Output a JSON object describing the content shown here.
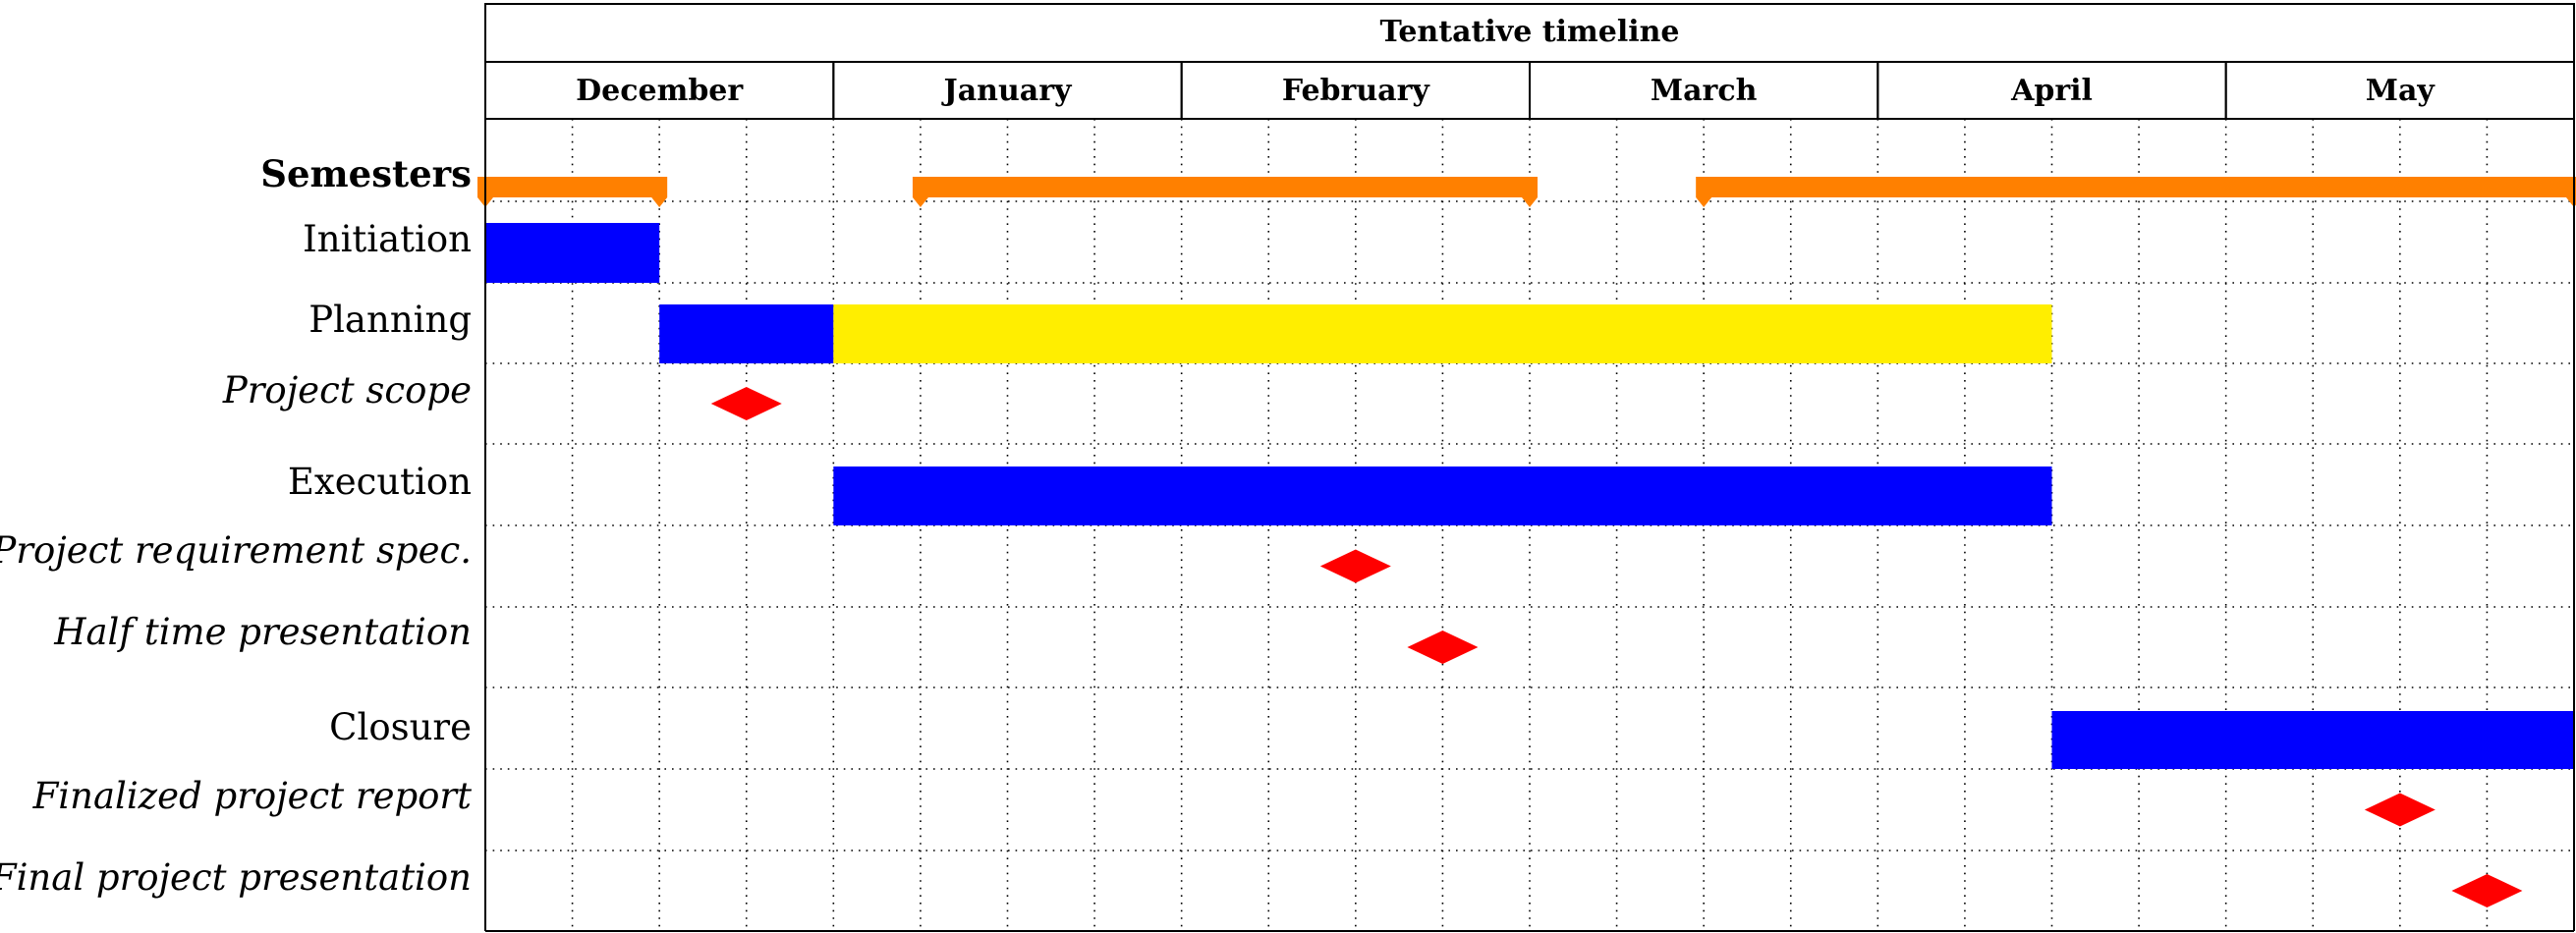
{
  "chart_data": {
    "type": "gantt",
    "title": "Tentative timeline",
    "months": [
      "December",
      "January",
      "February",
      "March",
      "April",
      "May"
    ],
    "subdivisions_per_month": 4,
    "grid": "dotted",
    "rows": [
      {
        "label": "Semesters",
        "style": "bold",
        "kind": "groups",
        "spans": [
          {
            "start": 0,
            "end": 2
          },
          {
            "start": 5,
            "end": 12
          },
          {
            "start": 14,
            "end": 24
          }
        ]
      },
      {
        "label": "Initiation",
        "style": "normal",
        "kind": "bar",
        "spans": [
          {
            "start": 0,
            "end": 2,
            "color": "blue"
          }
        ]
      },
      {
        "label": "Planning",
        "style": "normal",
        "kind": "bar",
        "spans": [
          {
            "start": 2,
            "end": 4,
            "color": "blue"
          },
          {
            "start": 4,
            "end": 18,
            "color": "yellow"
          }
        ]
      },
      {
        "label": "Project scope",
        "style": "italic",
        "kind": "milestone",
        "at": 3
      },
      {
        "label": "Execution",
        "style": "normal",
        "kind": "bar",
        "spans": [
          {
            "start": 4,
            "end": 18,
            "color": "blue"
          }
        ]
      },
      {
        "label": "Project requirement spec.",
        "style": "italic",
        "kind": "milestone",
        "at": 10
      },
      {
        "label": "Half time presentation",
        "style": "italic",
        "kind": "milestone",
        "at": 11
      },
      {
        "label": "Closure",
        "style": "normal",
        "kind": "bar",
        "spans": [
          {
            "start": 18,
            "end": 24,
            "color": "blue"
          }
        ]
      },
      {
        "label": "Finalized project report",
        "style": "italic",
        "kind": "milestone",
        "at": 22
      },
      {
        "label": "Final project presentation",
        "style": "italic",
        "kind": "milestone",
        "at": 23
      }
    ],
    "colors": {
      "blue": "#0000ff",
      "yellow": "#ffee00",
      "orange": "#ff8000",
      "milestone": "#ff0000"
    }
  }
}
